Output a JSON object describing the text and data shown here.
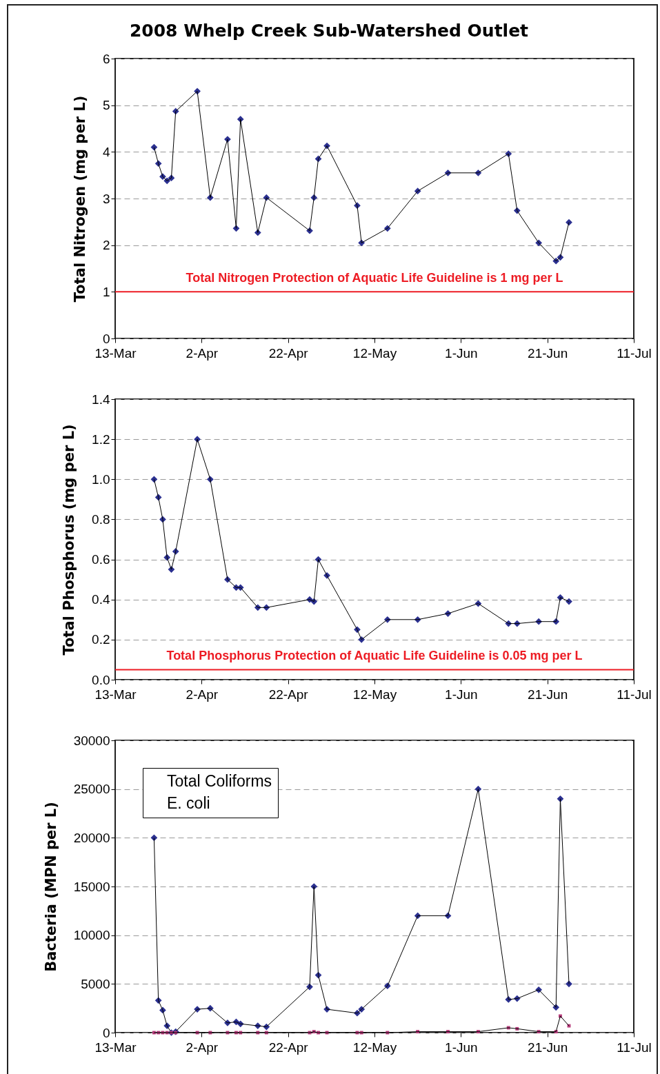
{
  "chart_data": [
    {
      "type": "line",
      "title": "2008 Whelp Creek Sub-Watershed Outlet",
      "ylabel": "Total Nitrogen (mg per L)",
      "x": [
        "--03-22",
        "--03-23",
        "--03-24",
        "--03-25",
        "--03-26",
        "--03-27",
        "--04-01",
        "--04-04",
        "--04-08",
        "--04-10",
        "--04-11",
        "--04-15",
        "--04-17",
        "--04-27",
        "--04-28",
        "--04-29",
        "--05-01",
        "--05-08",
        "--05-09",
        "--05-15",
        "--05-22",
        "--05-29",
        "--06-05",
        "--06-12",
        "--06-14",
        "--06-19",
        "--06-23",
        "--06-24",
        "--06-26"
      ],
      "series": [
        {
          "color": "#2b3090",
          "values": [
            4.1,
            3.75,
            3.47,
            3.38,
            3.44,
            4.87,
            5.3,
            3.02,
            4.27,
            2.36,
            4.7,
            2.27,
            3.02,
            2.31,
            3.02,
            3.85,
            4.13,
            2.85,
            2.05,
            2.36,
            3.16,
            3.55,
            3.55,
            3.96,
            2.74,
            2.05,
            1.66,
            1.74,
            2.49
          ]
        }
      ],
      "xlim": [
        "--03-13",
        "--07-11"
      ],
      "xticks": [
        {
          "value": "--03-13",
          "label": "13-Mar"
        },
        {
          "value": "--04-02",
          "label": "2-Apr"
        },
        {
          "value": "--04-22",
          "label": "22-Apr"
        },
        {
          "value": "--05-12",
          "label": "12-May"
        },
        {
          "value": "--06-01",
          "label": "1-Jun"
        },
        {
          "value": "--06-21",
          "label": "21-Jun"
        },
        {
          "value": "--07-11",
          "label": "11-Jul"
        }
      ],
      "ylim": [
        0,
        6
      ],
      "yticks": [
        0,
        1,
        2,
        3,
        4,
        5,
        6
      ],
      "grid": "y",
      "marker": "diamond",
      "line_style": "solid",
      "ref_lines": [
        {
          "axis": "y",
          "value": 1,
          "label": "Total Nitrogen Protection of Aquatic Life Guideline is 1 mg per L",
          "color": "#ed1c24"
        }
      ]
    },
    {
      "type": "line",
      "ylabel": "Total Phosphorus (mg per L)",
      "x": [
        "--03-22",
        "--03-23",
        "--03-24",
        "--03-25",
        "--03-26",
        "--03-27",
        "--04-01",
        "--04-04",
        "--04-08",
        "--04-10",
        "--04-11",
        "--04-15",
        "--04-17",
        "--04-27",
        "--04-28",
        "--04-29",
        "--05-01",
        "--05-08",
        "--05-09",
        "--05-15",
        "--05-22",
        "--05-29",
        "--06-05",
        "--06-12",
        "--06-14",
        "--06-19",
        "--06-23",
        "--06-24",
        "--06-26"
      ],
      "series": [
        {
          "color": "#2b3090",
          "values": [
            1.0,
            0.91,
            0.8,
            0.61,
            0.55,
            0.64,
            1.2,
            1.0,
            0.5,
            0.46,
            0.46,
            0.36,
            0.36,
            0.4,
            0.39,
            0.6,
            0.52,
            0.25,
            0.2,
            0.3,
            0.3,
            0.33,
            0.38,
            0.28,
            0.28,
            0.29,
            0.29,
            0.41,
            0.39
          ]
        }
      ],
      "xlim": [
        "--03-13",
        "--07-11"
      ],
      "xticks": [
        {
          "value": "--03-13",
          "label": "13-Mar"
        },
        {
          "value": "--04-02",
          "label": "2-Apr"
        },
        {
          "value": "--04-22",
          "label": "22-Apr"
        },
        {
          "value": "--05-12",
          "label": "12-May"
        },
        {
          "value": "--06-01",
          "label": "1-Jun"
        },
        {
          "value": "--06-21",
          "label": "21-Jun"
        },
        {
          "value": "--07-11",
          "label": "11-Jul"
        }
      ],
      "ylim": [
        0,
        1.4
      ],
      "yticks": [
        {
          "value": 0,
          "label": "0.0"
        },
        0.2,
        0.4,
        0.6,
        0.8,
        {
          "value": 1,
          "label": "1.0"
        },
        1.2,
        1.4
      ],
      "grid": "y",
      "marker": "diamond",
      "line_style": "solid",
      "ref_lines": [
        {
          "axis": "y",
          "value": 0.05,
          "label": "Total Phosphorus Protection of Aquatic Life Guideline is 0.05 mg per L",
          "color": "#ed1c24"
        }
      ]
    },
    {
      "type": "line",
      "ylabel": "Bacteria (MPN per L)",
      "x": [
        "--03-22",
        "--03-23",
        "--03-24",
        "--03-25",
        "--03-26",
        "--03-27",
        "--04-01",
        "--04-04",
        "--04-08",
        "--04-10",
        "--04-11",
        "--04-15",
        "--04-17",
        "--04-27",
        "--04-28",
        "--04-29",
        "--05-01",
        "--05-08",
        "--05-09",
        "--05-15",
        "--05-22",
        "--05-29",
        "--06-05",
        "--06-12",
        "--06-14",
        "--06-19",
        "--06-23",
        "--06-24",
        "--06-26"
      ],
      "series": [
        {
          "name": "Total Coliforms",
          "color": "#2b3090",
          "marker": "diamond",
          "values": [
            20000,
            3300,
            2300,
            700,
            0,
            100,
            2400,
            2500,
            1000,
            1100,
            900,
            700,
            600,
            4700,
            15000,
            5900,
            2400,
            2000,
            2400,
            4800,
            12000,
            12000,
            25000,
            3400,
            3500,
            4400,
            2600,
            24000,
            5000
          ]
        },
        {
          "name": "E. coli",
          "color": "#b83c7c",
          "marker": "square",
          "values": [
            0,
            0,
            0,
            0,
            0,
            0,
            0,
            0,
            0,
            0,
            0,
            0,
            0,
            0,
            100,
            0,
            0,
            0,
            0,
            0,
            100,
            100,
            100,
            500,
            400,
            100,
            100,
            1700,
            700
          ]
        }
      ],
      "xlim": [
        "--03-13",
        "--07-11"
      ],
      "xticks": [
        {
          "value": "--03-13",
          "label": "13-Mar"
        },
        {
          "value": "--04-02",
          "label": "2-Apr"
        },
        {
          "value": "--04-22",
          "label": "22-Apr"
        },
        {
          "value": "--05-12",
          "label": "12-May"
        },
        {
          "value": "--06-01",
          "label": "1-Jun"
        },
        {
          "value": "--06-21",
          "label": "21-Jun"
        },
        {
          "value": "--07-11",
          "label": "11-Jul"
        }
      ],
      "ylim": [
        0,
        30000
      ],
      "yticks": [
        0,
        5000,
        10000,
        15000,
        20000,
        25000,
        30000
      ],
      "grid": "y",
      "legend": "top left",
      "line_style": "solid"
    }
  ]
}
